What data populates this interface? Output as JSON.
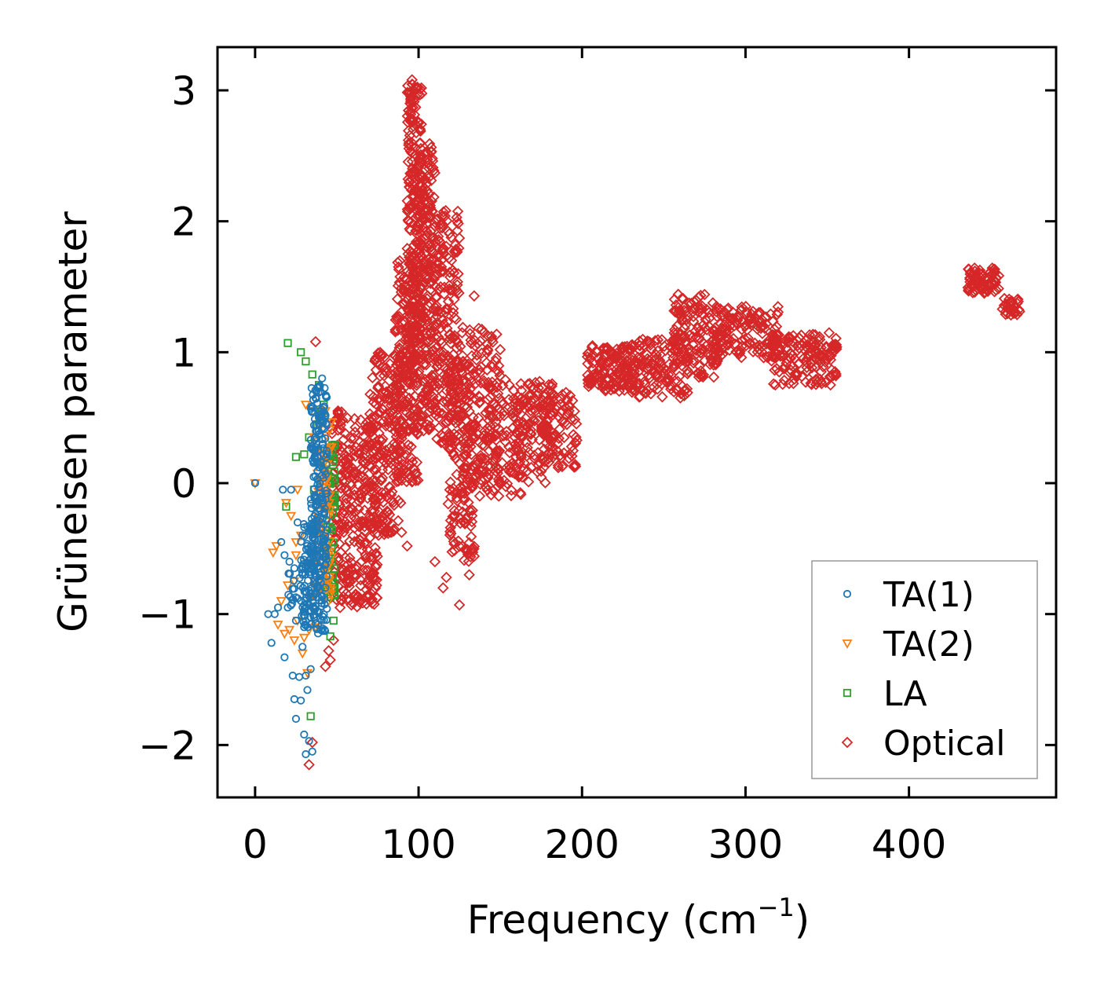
{
  "chart_data": {
    "type": "scatter",
    "title": "",
    "xlabel": "Frequency (cm",
    "xlabel_sup": "−1",
    "xlabel_close": ")",
    "ylabel": "Grüneisen parameter",
    "xlim": [
      -23,
      490
    ],
    "ylim": [
      -2.4,
      3.33
    ],
    "xticks": [
      0,
      100,
      200,
      300,
      400
    ],
    "xtick_labels": [
      "0",
      "100",
      "200",
      "300",
      "400"
    ],
    "yticks": [
      -2,
      -1,
      0,
      1,
      2,
      3
    ],
    "ytick_labels": [
      "−2",
      "−1",
      "0",
      "1",
      "2",
      "3"
    ],
    "legend_position": "lower-right",
    "series": [
      {
        "name": "TA(1)",
        "marker": "circle",
        "color": "#1f77b4",
        "points": [
          [
            0,
            0
          ],
          [
            17,
            -0.05
          ],
          [
            22,
            -0.05
          ],
          [
            26,
            -0.3
          ],
          [
            24,
            -0.65
          ],
          [
            29,
            -0.7
          ],
          [
            16,
            -0.45
          ],
          [
            18,
            -0.55
          ],
          [
            21,
            -0.6
          ],
          [
            12,
            -1.0
          ],
          [
            8,
            -1.0
          ],
          [
            10,
            -1.22
          ],
          [
            14,
            -0.95
          ],
          [
            20,
            -0.95
          ],
          [
            25,
            -1.05
          ],
          [
            18,
            -1.33
          ],
          [
            23,
            -1.47
          ],
          [
            27,
            -1.48
          ],
          [
            31,
            -1.47
          ],
          [
            34,
            -1.42
          ],
          [
            24,
            -1.65
          ],
          [
            28,
            -1.66
          ],
          [
            25,
            -1.8
          ],
          [
            30,
            -1.92
          ],
          [
            33,
            -1.97
          ],
          [
            35,
            -2.05
          ],
          [
            31,
            -2.07
          ],
          [
            32,
            -1.58
          ],
          [
            29,
            -1.25
          ],
          [
            30,
            -1.1
          ],
          [
            26,
            -0.88
          ],
          [
            33,
            -0.82
          ],
          [
            36,
            -0.3
          ],
          [
            37,
            -0.1
          ],
          [
            38,
            0.2
          ],
          [
            39,
            0.5
          ],
          [
            40,
            0.7
          ],
          [
            41,
            0.8
          ],
          [
            35,
            0.55
          ],
          [
            37,
            0.65
          ]
        ],
        "clusters": [
          {
            "xrange": [
              34,
              44
            ],
            "yrange": [
              -1.15,
              0.75
            ],
            "n": 260
          },
          {
            "xrange": [
              28,
              38
            ],
            "yrange": [
              -1.1,
              -0.3
            ],
            "n": 70
          },
          {
            "xrange": [
              20,
              32
            ],
            "yrange": [
              -1.05,
              -0.6
            ],
            "n": 25
          }
        ]
      },
      {
        "name": "TA(2)",
        "marker": "triangle-down",
        "color": "#ff7f0e",
        "points": [
          [
            0,
            0
          ],
          [
            25,
            -0.55
          ],
          [
            28,
            -0.4
          ],
          [
            22,
            -0.25
          ],
          [
            19,
            -0.15
          ],
          [
            26,
            -0.05
          ],
          [
            13,
            -0.48
          ],
          [
            11,
            -0.53
          ],
          [
            16,
            -0.9
          ],
          [
            14,
            -1.08
          ],
          [
            18,
            -1.15
          ],
          [
            21,
            -1.12
          ],
          [
            24,
            -1.2
          ],
          [
            34,
            -0.88
          ],
          [
            36,
            -0.75
          ],
          [
            38,
            -0.6
          ],
          [
            40,
            -0.3
          ],
          [
            33,
            -1.12
          ],
          [
            30,
            -1.18
          ],
          [
            43,
            0.55
          ],
          [
            25,
            -0.45
          ],
          [
            20,
            -0.78
          ],
          [
            24,
            -0.75
          ],
          [
            26,
            -1.05
          ],
          [
            31,
            0.6
          ],
          [
            34,
            0.55
          ],
          [
            36,
            0.35
          ],
          [
            32,
            -1.45
          ],
          [
            29,
            -1.3
          ],
          [
            37,
            -1.1
          ]
        ],
        "clusters": [
          {
            "xrange": [
              38,
              47
            ],
            "yrange": [
              -0.9,
              0.55
            ],
            "n": 80
          }
        ]
      },
      {
        "name": "LA",
        "marker": "square",
        "color": "#2ca02c",
        "points": [
          [
            20,
            1.07
          ],
          [
            28,
            1.0
          ],
          [
            31,
            0.93
          ],
          [
            35,
            0.83
          ],
          [
            39,
            0.75
          ],
          [
            42,
            0.6
          ],
          [
            40,
            0.55
          ],
          [
            38,
            0.45
          ],
          [
            33,
            0.35
          ],
          [
            25,
            0.2
          ],
          [
            30,
            0.22
          ],
          [
            36,
            -0.05
          ],
          [
            19,
            -0.18
          ],
          [
            34,
            -1.78
          ],
          [
            48,
            -1.05
          ],
          [
            46,
            -1.17
          ],
          [
            47,
            -0.6
          ],
          [
            45,
            -0.78
          ],
          [
            44,
            -0.85
          ],
          [
            43,
            -0.5
          ]
        ],
        "clusters": [
          {
            "xrange": [
              43,
              49
            ],
            "yrange": [
              -0.9,
              0.3
            ],
            "n": 60
          }
        ]
      },
      {
        "name": "Optical",
        "marker": "diamond",
        "color": "#d62728",
        "points": [
          [
            37,
            1.08
          ],
          [
            33,
            -2.15
          ],
          [
            35,
            -1.98
          ],
          [
            46,
            -1.35
          ],
          [
            43,
            -1.4
          ],
          [
            45,
            -1.28
          ],
          [
            48,
            -1.2
          ],
          [
            50,
            -0.72
          ],
          [
            52,
            -0.95
          ],
          [
            60,
            -0.92
          ],
          [
            65,
            -0.6
          ],
          [
            70,
            -0.3
          ],
          [
            85,
            -0.35
          ],
          [
            93,
            -0.48
          ],
          [
            125,
            -0.93
          ],
          [
            115,
            -0.8
          ],
          [
            117,
            -0.72
          ],
          [
            131,
            -0.7
          ],
          [
            110,
            -0.6
          ],
          [
            103,
            0.4
          ],
          [
            96,
            3.08
          ],
          [
            100,
            2.75
          ],
          [
            122,
            1.77
          ],
          [
            134,
            1.43
          ],
          [
            170,
            0.48
          ],
          [
            176,
            0.73
          ],
          [
            195,
            0.13
          ],
          [
            185,
            0.3
          ],
          [
            240,
            0.95
          ],
          [
            258,
            0.72
          ],
          [
            265,
            0.85
          ],
          [
            290,
            1.1
          ],
          [
            340,
            1.0
          ],
          [
            352,
            0.75
          ],
          [
            463,
            1.38
          ],
          [
            440,
            1.55
          ]
        ],
        "clusters": [
          {
            "xrange": [
              46,
              58
            ],
            "yrange": [
              -0.9,
              0.6
            ],
            "n": 120
          },
          {
            "xrange": [
              55,
              75
            ],
            "yrange": [
              -0.95,
              0.5
            ],
            "n": 200
          },
          {
            "xrange": [
              70,
              90
            ],
            "yrange": [
              -0.4,
              1.0
            ],
            "n": 200
          },
          {
            "xrange": [
              85,
              100
            ],
            "yrange": [
              0.0,
              1.7
            ],
            "n": 220
          },
          {
            "xrange": [
              93,
              102
            ],
            "yrange": [
              0.8,
              3.05
            ],
            "n": 220
          },
          {
            "xrange": [
              100,
              110
            ],
            "yrange": [
              0.4,
              2.6
            ],
            "n": 220
          },
          {
            "xrange": [
              110,
              125
            ],
            "yrange": [
              0.3,
              2.1
            ],
            "n": 200
          },
          {
            "xrange": [
              118,
              135
            ],
            "yrange": [
              -0.6,
              1.0
            ],
            "n": 160
          },
          {
            "xrange": [
              125,
              150
            ],
            "yrange": [
              -0.1,
              1.2
            ],
            "n": 150
          },
          {
            "xrange": [
              140,
              165
            ],
            "yrange": [
              -0.1,
              0.8
            ],
            "n": 100
          },
          {
            "xrange": [
              158,
              182
            ],
            "yrange": [
              0.0,
              0.8
            ],
            "n": 110
          },
          {
            "xrange": [
              175,
              197
            ],
            "yrange": [
              0.1,
              0.7
            ],
            "n": 90
          },
          {
            "xrange": [
              203,
              232
            ],
            "yrange": [
              0.7,
              1.05
            ],
            "n": 130
          },
          {
            "xrange": [
              225,
              265
            ],
            "yrange": [
              0.65,
              1.1
            ],
            "n": 150
          },
          {
            "xrange": [
              255,
              283
            ],
            "yrange": [
              0.8,
              1.45
            ],
            "n": 130
          },
          {
            "xrange": [
              280,
              320
            ],
            "yrange": [
              0.95,
              1.35
            ],
            "n": 150
          },
          {
            "xrange": [
              315,
              356
            ],
            "yrange": [
              0.75,
              1.15
            ],
            "n": 150
          },
          {
            "xrange": [
              436,
              455
            ],
            "yrange": [
              1.45,
              1.65
            ],
            "n": 70
          },
          {
            "xrange": [
              457,
              468
            ],
            "yrange": [
              1.28,
              1.42
            ],
            "n": 30
          }
        ]
      }
    ]
  }
}
